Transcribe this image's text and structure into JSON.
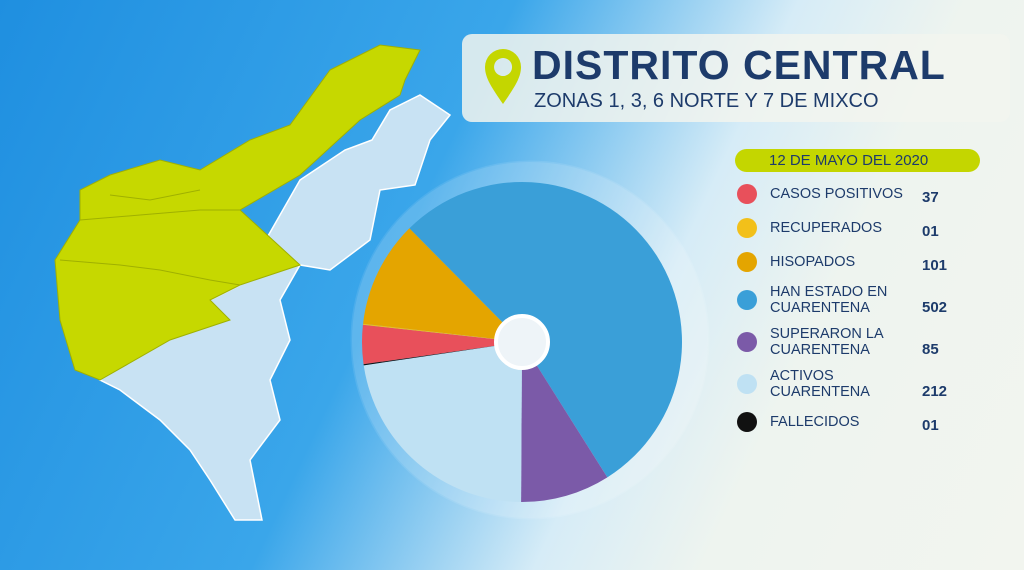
{
  "chart_data": {
    "type": "pie",
    "title": "DISTRITO CENTRAL",
    "subtitle": "ZONAS 1, 3, 6 NORTE Y 7 DE MIXCO",
    "date": "12 DE MAYO DEL 2020",
    "categories": [
      "CASOS POSITIVOS",
      "RECUPERADOS",
      "HISOPADOS",
      "HAN ESTADO EN CUARENTENA",
      "SUPERARON LA CUARENTENA",
      "ACTIVOS CUARENTENA",
      "FALLECIDOS"
    ],
    "values": [
      37,
      1,
      101,
      502,
      85,
      212,
      1
    ],
    "value_labels": [
      "37",
      "01",
      "101",
      "502",
      "85",
      "212",
      "01"
    ],
    "colors": [
      "#e8505b",
      "#f2c01a",
      "#e4a500",
      "#3a9fd8",
      "#7b5aa8",
      "#bfe1f3",
      "#111111"
    ]
  }
}
